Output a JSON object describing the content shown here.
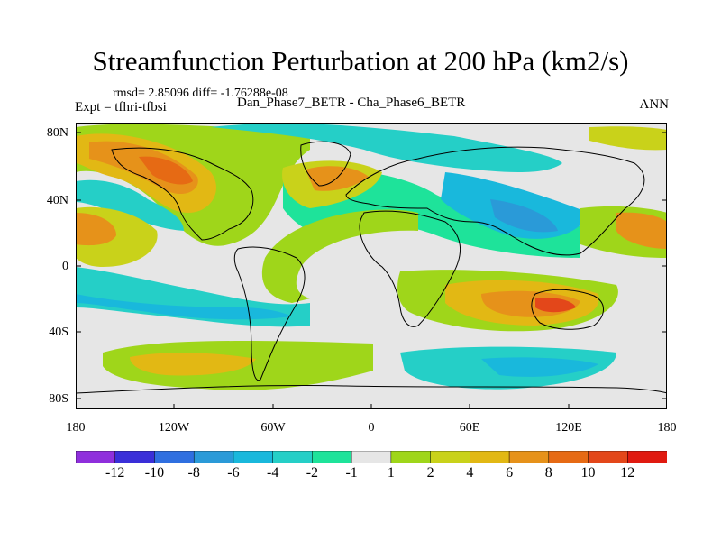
{
  "title": "Streamfunction Perturbation at 200 hPa (km2/s)",
  "stats": "rmsd= 2.85096  diff= -1.76288e-08",
  "expt_label": "Expt = tfhri-tfbsi",
  "subtitle": "Dan_Phase7_BETR - Cha_Phase6_BETR",
  "season": "ANN",
  "y_ticks": [
    "80N",
    "40N",
    "0",
    "40S",
    "80S"
  ],
  "x_ticks": [
    "180",
    "120W",
    "60W",
    "0",
    "60E",
    "120E",
    "180"
  ],
  "colorbar": {
    "labels": [
      "-12",
      "-10",
      "-8",
      "-6",
      "-4",
      "-2",
      "-1",
      "1",
      "2",
      "4",
      "6",
      "8",
      "10",
      "12"
    ],
    "colors": [
      "#8f2fdc",
      "#3a2fd8",
      "#2f6fe0",
      "#2a9ad8",
      "#19b8dc",
      "#25cfc7",
      "#1ee39a",
      "#e6e6e6",
      "#9fd61a",
      "#c9d21a",
      "#e2b814",
      "#e6921a",
      "#e66a14",
      "#e3471a",
      "#e01a10"
    ]
  },
  "palette": {
    "land_outline": "#000000",
    "near_zero": "#e6e6e6"
  }
}
